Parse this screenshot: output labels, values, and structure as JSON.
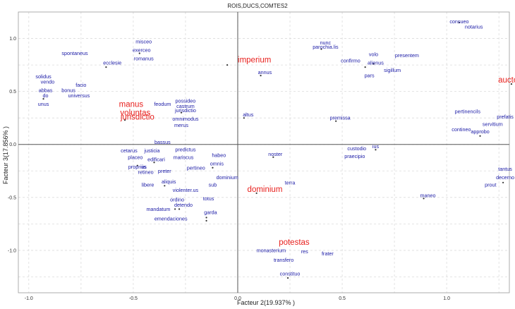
{
  "chart_data": {
    "type": "scatter",
    "title": "ROIS,DUCS,COMTES2",
    "xlabel": "Facteur 2(19.937% )",
    "ylabel": "Facteur 3(17.856% )",
    "xlim": [
      -1.05,
      1.3
    ],
    "ylim": [
      -1.4,
      1.25
    ],
    "x_ticks": [
      -1.0,
      -0.5,
      0.0,
      0.5,
      1.0
    ],
    "y_ticks": [
      -1.0,
      -0.5,
      0.0,
      0.5,
      1.0
    ],
    "x_tick_labels": [
      "-1.0",
      "-0.5",
      "0.0",
      "0.5",
      "1.0"
    ],
    "y_tick_labels": [
      "-1.0",
      "-0.5",
      "0.0",
      "0.5",
      "1.0"
    ],
    "grid": true,
    "colors": {
      "words": "#1a1aa6",
      "categories": "#e8211e",
      "points": "#333333"
    },
    "series": [
      {
        "kind": "words",
        "points": [
          {
            "label": "consueo",
            "x": 1.06,
            "y": 1.16
          },
          {
            "label": "notarius",
            "x": 1.13,
            "y": 1.11
          },
          {
            "label": "nunc",
            "x": 0.42,
            "y": 0.96
          },
          {
            "label": "parochia.lis",
            "x": 0.42,
            "y": 0.92
          },
          {
            "label": "volo",
            "x": 0.65,
            "y": 0.85
          },
          {
            "label": "presentem",
            "x": 0.81,
            "y": 0.84
          },
          {
            "label": "confirmo",
            "x": 0.54,
            "y": 0.79
          },
          {
            "label": "alienus",
            "x": 0.66,
            "y": 0.77
          },
          {
            "label": "sigillum",
            "x": 0.74,
            "y": 0.7
          },
          {
            "label": "pars",
            "x": 0.63,
            "y": 0.65
          },
          {
            "label": "annus",
            "x": 0.13,
            "y": 0.68
          },
          {
            "label": "misceo",
            "x": -0.45,
            "y": 0.97
          },
          {
            "label": "exerceo",
            "x": -0.46,
            "y": 0.89
          },
          {
            "label": "romanus",
            "x": -0.45,
            "y": 0.81
          },
          {
            "label": "ecclesie",
            "x": -0.6,
            "y": 0.77
          },
          {
            "label": "spontaneus",
            "x": -0.78,
            "y": 0.86
          },
          {
            "label": "solidus",
            "x": -0.93,
            "y": 0.64
          },
          {
            "label": "vendo",
            "x": -0.91,
            "y": 0.59
          },
          {
            "label": "facio",
            "x": -0.75,
            "y": 0.56
          },
          {
            "label": "abbas",
            "x": -0.92,
            "y": 0.51
          },
          {
            "label": "bonus",
            "x": -0.81,
            "y": 0.51
          },
          {
            "label": "do",
            "x": -0.92,
            "y": 0.46
          },
          {
            "label": "universus",
            "x": -0.76,
            "y": 0.46
          },
          {
            "label": "unus",
            "x": -0.93,
            "y": 0.38
          },
          {
            "label": "feodum",
            "x": -0.36,
            "y": 0.38
          },
          {
            "label": "possideo",
            "x": -0.25,
            "y": 0.41
          },
          {
            "label": "castrum",
            "x": -0.25,
            "y": 0.36
          },
          {
            "label": "jurisdictio",
            "x": -0.25,
            "y": 0.32
          },
          {
            "label": "omnimodus",
            "x": -0.25,
            "y": 0.24
          },
          {
            "label": "merus",
            "x": -0.27,
            "y": 0.18
          },
          {
            "label": "altus",
            "x": 0.05,
            "y": 0.28
          },
          {
            "label": "premissa",
            "x": 0.49,
            "y": 0.25
          },
          {
            "label": "pertinencils",
            "x": 1.1,
            "y": 0.31
          },
          {
            "label": "prefatis",
            "x": 1.28,
            "y": 0.26
          },
          {
            "label": "servitium",
            "x": 1.22,
            "y": 0.19
          },
          {
            "label": "contineo",
            "x": 1.07,
            "y": 0.14
          },
          {
            "label": "approbo",
            "x": 1.16,
            "y": 0.12
          },
          {
            "label": "bassus",
            "x": -0.36,
            "y": 0.02
          },
          {
            "label": "cetarus",
            "x": -0.52,
            "y": -0.06
          },
          {
            "label": "justicia",
            "x": -0.41,
            "y": -0.06
          },
          {
            "label": "predictus",
            "x": -0.25,
            "y": -0.05
          },
          {
            "label": "placeo",
            "x": -0.49,
            "y": -0.12
          },
          {
            "label": "mariscus",
            "x": -0.26,
            "y": -0.12
          },
          {
            "label": "edificari",
            "x": -0.39,
            "y": -0.14
          },
          {
            "label": "habeo",
            "x": -0.09,
            "y": -0.1
          },
          {
            "label": "noster",
            "x": 0.18,
            "y": -0.09
          },
          {
            "label": "custodio",
            "x": 0.57,
            "y": -0.04
          },
          {
            "label": "ius",
            "x": 0.66,
            "y": -0.02
          },
          {
            "label": "praecipio",
            "x": 0.56,
            "y": -0.11
          },
          {
            "label": "omnis",
            "x": -0.1,
            "y": -0.18
          },
          {
            "label": "proprius",
            "x": -0.48,
            "y": -0.21
          },
          {
            "label": "iis",
            "x": -0.45,
            "y": -0.21
          },
          {
            "label": "retineo",
            "x": -0.44,
            "y": -0.26
          },
          {
            "label": "preter",
            "x": -0.35,
            "y": -0.25
          },
          {
            "label": "pertineo",
            "x": -0.2,
            "y": -0.22
          },
          {
            "label": "dominium",
            "x": -0.05,
            "y": -0.31
          },
          {
            "label": "tantus",
            "x": 1.28,
            "y": -0.23
          },
          {
            "label": "decerno",
            "x": 1.28,
            "y": -0.31
          },
          {
            "label": "prout",
            "x": 1.21,
            "y": -0.38
          },
          {
            "label": "terra",
            "x": 0.25,
            "y": -0.36
          },
          {
            "label": "aliquis",
            "x": -0.33,
            "y": -0.35
          },
          {
            "label": "libere",
            "x": -0.43,
            "y": -0.38
          },
          {
            "label": "sub",
            "x": -0.12,
            "y": -0.38
          },
          {
            "label": "violenter.us",
            "x": -0.25,
            "y": -0.43
          },
          {
            "label": "maneo",
            "x": 0.91,
            "y": -0.48
          },
          {
            "label": "ordino",
            "x": -0.29,
            "y": -0.52
          },
          {
            "label": "totus",
            "x": -0.14,
            "y": -0.51
          },
          {
            "label": "detendo",
            "x": -0.26,
            "y": -0.57
          },
          {
            "label": "mandatum",
            "x": -0.38,
            "y": -0.61
          },
          {
            "label": "garda",
            "x": -0.13,
            "y": -0.64
          },
          {
            "label": "emendaciones",
            "x": -0.32,
            "y": -0.7
          },
          {
            "label": "monasterium",
            "x": 0.16,
            "y": -1.0
          },
          {
            "label": "res",
            "x": 0.32,
            "y": -1.01
          },
          {
            "label": "frater",
            "x": 0.43,
            "y": -1.03
          },
          {
            "label": "transfero",
            "x": 0.22,
            "y": -1.09
          },
          {
            "label": "constituo",
            "x": 0.25,
            "y": -1.22
          }
        ]
      },
      {
        "kind": "categories",
        "points": [
          {
            "label": "imperium",
            "x": 0.08,
            "y": 0.8
          },
          {
            "label": "auctorit",
            "x": 1.31,
            "y": 0.61
          },
          {
            "label": "manus",
            "x": -0.51,
            "y": 0.38
          },
          {
            "label": "voluntas",
            "x": -0.49,
            "y": 0.3
          },
          {
            "label": "jurisdictio",
            "x": -0.48,
            "y": 0.26
          },
          {
            "label": "dominium",
            "x": 0.13,
            "y": -0.42
          },
          {
            "label": "potestas",
            "x": 0.27,
            "y": -0.92
          }
        ]
      }
    ],
    "markers": [
      {
        "x": 1.06,
        "y": 1.15
      },
      {
        "x": 0.4,
        "y": 0.9
      },
      {
        "x": 0.65,
        "y": 0.76
      },
      {
        "x": 0.61,
        "y": 0.73
      },
      {
        "x": -0.63,
        "y": 0.73
      },
      {
        "x": -0.47,
        "y": 0.86
      },
      {
        "x": 0.11,
        "y": 0.65
      },
      {
        "x": -0.05,
        "y": 0.75
      },
      {
        "x": 1.31,
        "y": 0.57
      },
      {
        "x": -0.93,
        "y": 0.43
      },
      {
        "x": -0.27,
        "y": 0.3
      },
      {
        "x": -0.54,
        "y": 0.23
      },
      {
        "x": 0.03,
        "y": 0.25
      },
      {
        "x": 0.47,
        "y": 0.22
      },
      {
        "x": 1.16,
        "y": 0.08
      },
      {
        "x": 0.66,
        "y": -0.05
      },
      {
        "x": 0.17,
        "y": -0.12
      },
      {
        "x": -0.4,
        "y": -0.17
      },
      {
        "x": -0.48,
        "y": -0.2
      },
      {
        "x": -0.12,
        "y": -0.22
      },
      {
        "x": -0.35,
        "y": -0.39
      },
      {
        "x": 1.27,
        "y": -0.36
      },
      {
        "x": 0.09,
        "y": -0.46
      },
      {
        "x": 0.89,
        "y": -0.51
      },
      {
        "x": -0.28,
        "y": -0.61
      },
      {
        "x": -0.3,
        "y": -0.61
      },
      {
        "x": -0.15,
        "y": -0.69
      },
      {
        "x": -0.15,
        "y": -0.72
      },
      {
        "x": 0.24,
        "y": -1.26
      }
    ]
  }
}
